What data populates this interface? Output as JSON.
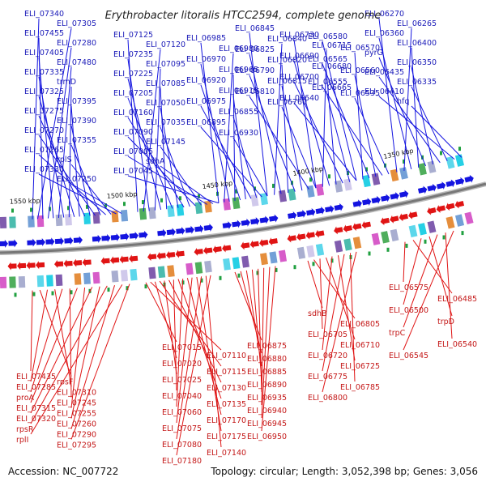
{
  "title": "Erythrobacter litoralis HTCC2594, complete genome",
  "footer": {
    "accession": "Accession: NC_007722",
    "summary": "Topology: circular; Length: 3,052,398 bp; Genes: 3,056"
  },
  "ticks": [
    "1550 kbp",
    "1500 kbp",
    "1450 kbp",
    "1400 kbp",
    "1350 kbp"
  ],
  "colors": {
    "forward": "#1414e0",
    "reverse": "#e01414",
    "backbone": "#777777"
  },
  "top_labels": [
    "ELI_07340",
    "ELI_07305",
    "ELI_07455",
    "ELI_07280",
    "ELI_07405",
    "ELI_07480",
    "ELI_07335",
    "trmD",
    "ELI_07325",
    "ELI_07395",
    "ELI_07275",
    "ELI_07390",
    "ELI_07270",
    "ELI_07355",
    "ELI_07265",
    "rplS",
    "ELI_07330",
    "ELI_07250",
    "ELI_07125",
    "ELI_07120",
    "ELI_07235",
    "ELI_07095",
    "ELI_07225",
    "ELI_07085",
    "ELI_07205",
    "ELI_07050",
    "ELI_07160",
    "ELI_07035",
    "ELI_07090",
    "ELI_07145",
    "ELI_07005",
    "sdhA",
    "ELI_07045",
    "ELI_06985",
    "ELI_06980",
    "ELI_06970",
    "ELI_06965",
    "ELI_06920",
    "ELI_06915",
    "ELI_06975",
    "ELI_06855",
    "ELI_06895",
    "ELI_06930",
    "ELI_06845",
    "ELI_06840",
    "ELI_06825",
    "ELI_06820",
    "ELI_06790",
    "ELI_06815",
    "ELI_06810",
    "ELI_06760",
    "ELI_06730",
    "ELI_06715",
    "ELI_06690",
    "ELI_06680",
    "ELI_06700",
    "ELI_06665",
    "ELI_06640",
    "ELI_06580",
    "ELI_06570",
    "ELI_06565",
    "ELI_06560",
    "ELI_06555",
    "ELI_06535",
    "ELI_06270",
    "ELI_06265",
    "ELI_06360",
    "ELI_06400",
    "pyrG",
    "ELI_06350",
    "ELI_06435",
    "ELI_06335",
    "ELI_06410",
    "hfq"
  ],
  "bottom_labels": [
    "ELI_07435",
    "rpsF",
    "ELI_07285",
    "ELI_07310",
    "proA",
    "ELI_07245",
    "ELI_07315",
    "ELI_07255",
    "ELI_07320",
    "ELI_07260",
    "rpsR",
    "ELI_07290",
    "rplI",
    "ELI_07295",
    "ELI_07015",
    "ELI_07110",
    "ELI_07020",
    "ELI_07115",
    "ELI_07025",
    "ELI_07130",
    "ELI_07040",
    "ELI_07135",
    "ELI_07060",
    "ELI_07170",
    "ELI_07075",
    "ELI_07175",
    "ELI_07080",
    "ELI_07140",
    "ELI_07180",
    "ELI_06875",
    "ELI_06880",
    "ELI_06885",
    "ELI_06890",
    "ELI_06935",
    "ELI_06940",
    "ELI_06945",
    "ELI_06950",
    "sdhB",
    "ELI_06805",
    "ELI_06705",
    "ELI_06710",
    "ELI_06720",
    "ELI_06725",
    "ELI_06775",
    "ELI_06785",
    "ELI_06800",
    "ELI_06575",
    "ELI_06485",
    "ELI_06500",
    "trpD",
    "trpC",
    "ELI_06540",
    "ELI_06545"
  ]
}
